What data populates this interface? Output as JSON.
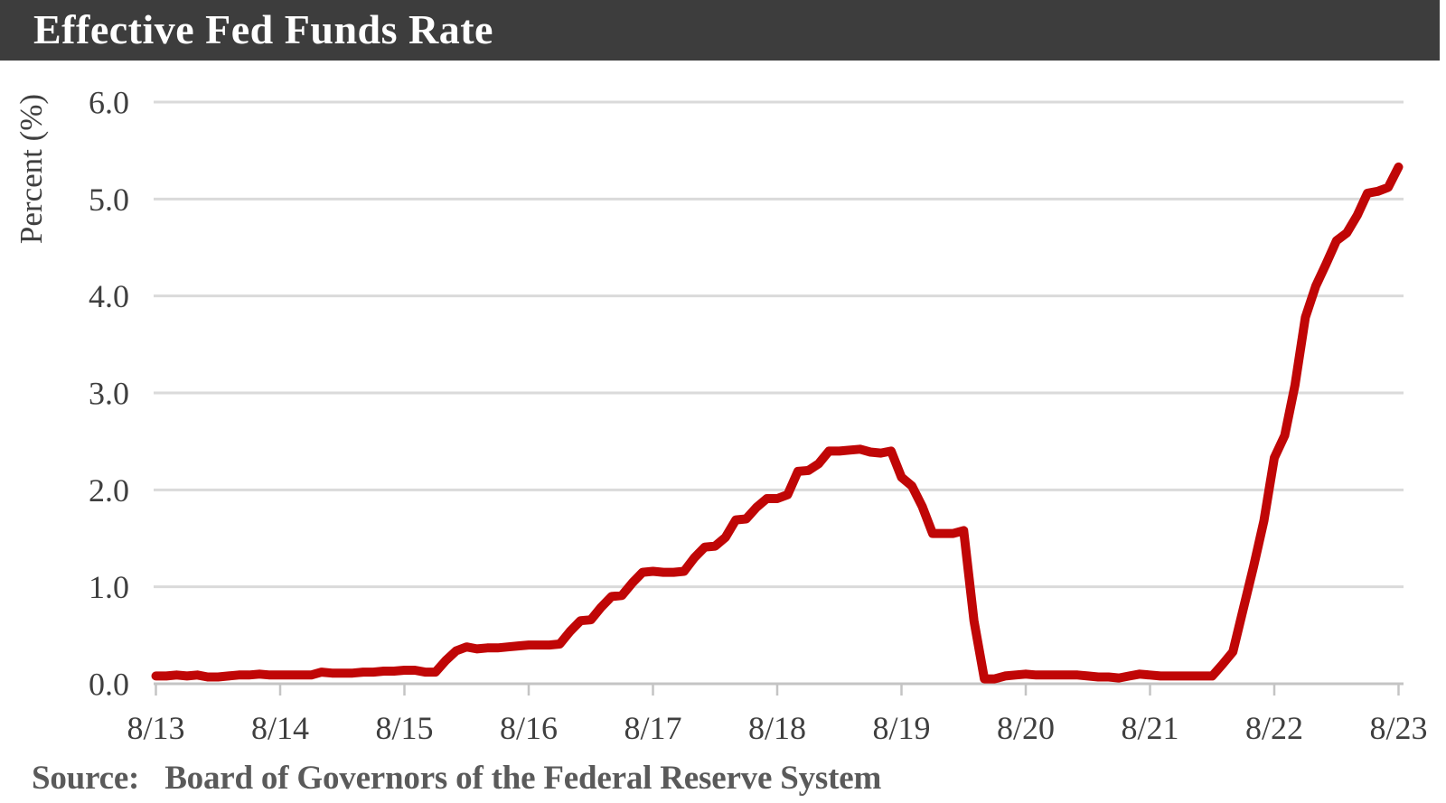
{
  "header": {
    "title": "Effective Fed Funds Rate",
    "bg_color": "#3d3d3d",
    "text_color": "#ffffff"
  },
  "chart_data": {
    "type": "line",
    "title": "Effective Fed Funds Rate",
    "xlabel": "",
    "ylabel": "Percent (%)",
    "ylim": [
      0,
      6
    ],
    "y_tick_labels": [
      "0.0",
      "1.0",
      "2.0",
      "3.0",
      "4.0",
      "5.0",
      "6.0"
    ],
    "x_tick_labels": [
      "8/13",
      "8/14",
      "8/15",
      "8/16",
      "8/17",
      "8/18",
      "8/19",
      "8/20",
      "8/21",
      "8/22",
      "8/23"
    ],
    "grid": "horizontal",
    "legend": "none",
    "frequency": "monthly",
    "x_start": "8/2013",
    "x_end": "8/2023",
    "series": [
      {
        "name": "Effective Fed Funds Rate",
        "unit": "percent",
        "color": "#c00606",
        "values": [
          0.08,
          0.08,
          0.09,
          0.08,
          0.09,
          0.07,
          0.07,
          0.08,
          0.09,
          0.09,
          0.1,
          0.09,
          0.09,
          0.09,
          0.09,
          0.09,
          0.12,
          0.11,
          0.11,
          0.11,
          0.12,
          0.12,
          0.13,
          0.13,
          0.14,
          0.14,
          0.12,
          0.12,
          0.24,
          0.34,
          0.38,
          0.36,
          0.37,
          0.37,
          0.38,
          0.39,
          0.4,
          0.4,
          0.4,
          0.41,
          0.54,
          0.65,
          0.66,
          0.79,
          0.9,
          0.91,
          1.04,
          1.15,
          1.16,
          1.15,
          1.15,
          1.16,
          1.3,
          1.41,
          1.42,
          1.51,
          1.69,
          1.7,
          1.82,
          1.91,
          1.91,
          1.95,
          2.19,
          2.2,
          2.27,
          2.4,
          2.4,
          2.41,
          2.42,
          2.39,
          2.38,
          2.4,
          2.13,
          2.04,
          1.83,
          1.55,
          1.55,
          1.55,
          1.58,
          0.65,
          0.05,
          0.05,
          0.08,
          0.09,
          0.1,
          0.09,
          0.09,
          0.09,
          0.09,
          0.09,
          0.08,
          0.07,
          0.07,
          0.06,
          0.08,
          0.1,
          0.09,
          0.08,
          0.08,
          0.08,
          0.08,
          0.08,
          0.08,
          0.2,
          0.33,
          0.77,
          1.21,
          1.68,
          2.33,
          2.56,
          3.08,
          3.78,
          4.1,
          4.33,
          4.57,
          4.65,
          4.83,
          5.06,
          5.08,
          5.12,
          5.33
        ]
      }
    ]
  },
  "source": {
    "label": "Source:",
    "text": "Board of Governors of the Federal Reserve System"
  }
}
